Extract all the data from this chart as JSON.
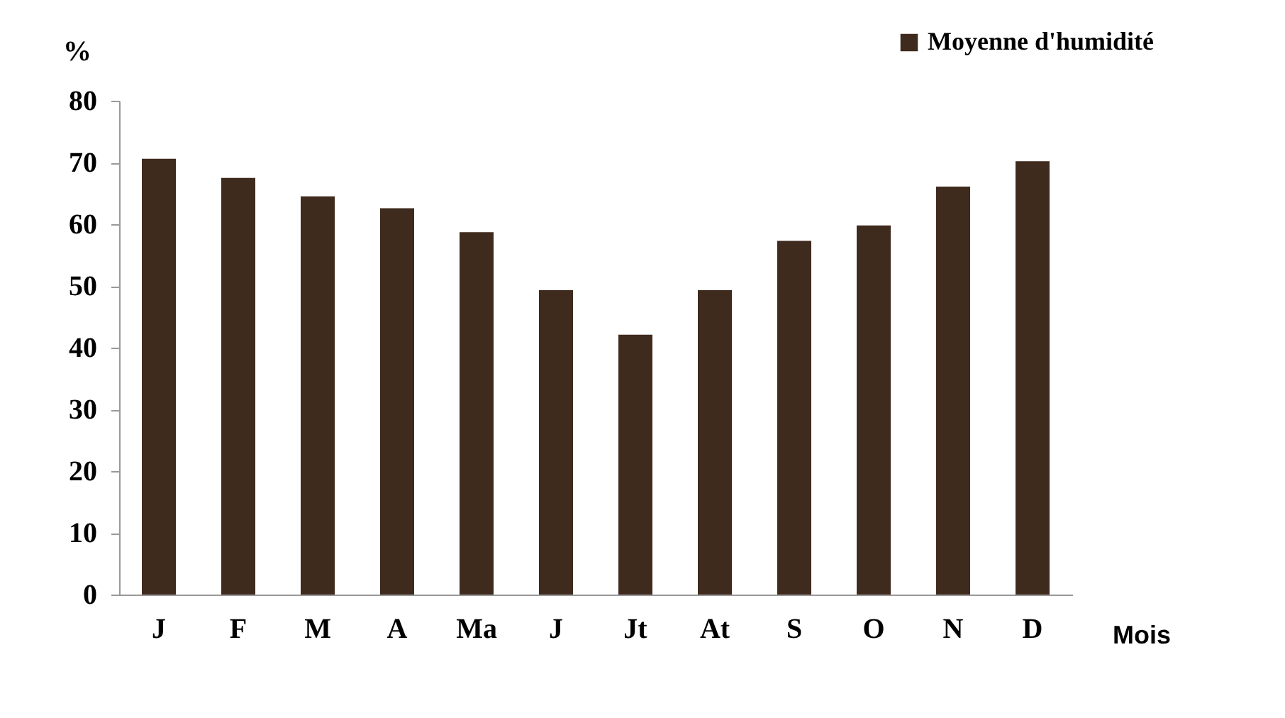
{
  "chart_data": {
    "type": "bar",
    "xlabel": "Mois",
    "ylabel": "%",
    "categories": [
      "J",
      "F",
      "M",
      "A",
      "Ma",
      "J",
      "Jt",
      "At",
      "S",
      "O",
      "N",
      "D"
    ],
    "series": [
      {
        "name": "Moyenne d'humidité",
        "color": "#3f2a1e",
        "values": [
          70.6,
          67.5,
          64.5,
          62.6,
          58.7,
          49.3,
          42.1,
          49.3,
          57.3,
          59.8,
          66.1,
          70.2
        ]
      }
    ],
    "ylim": [
      0,
      80
    ],
    "yticks": [
      0,
      10,
      20,
      30,
      40,
      50,
      60,
      70,
      80
    ],
    "grid": false,
    "legend": "top right"
  }
}
